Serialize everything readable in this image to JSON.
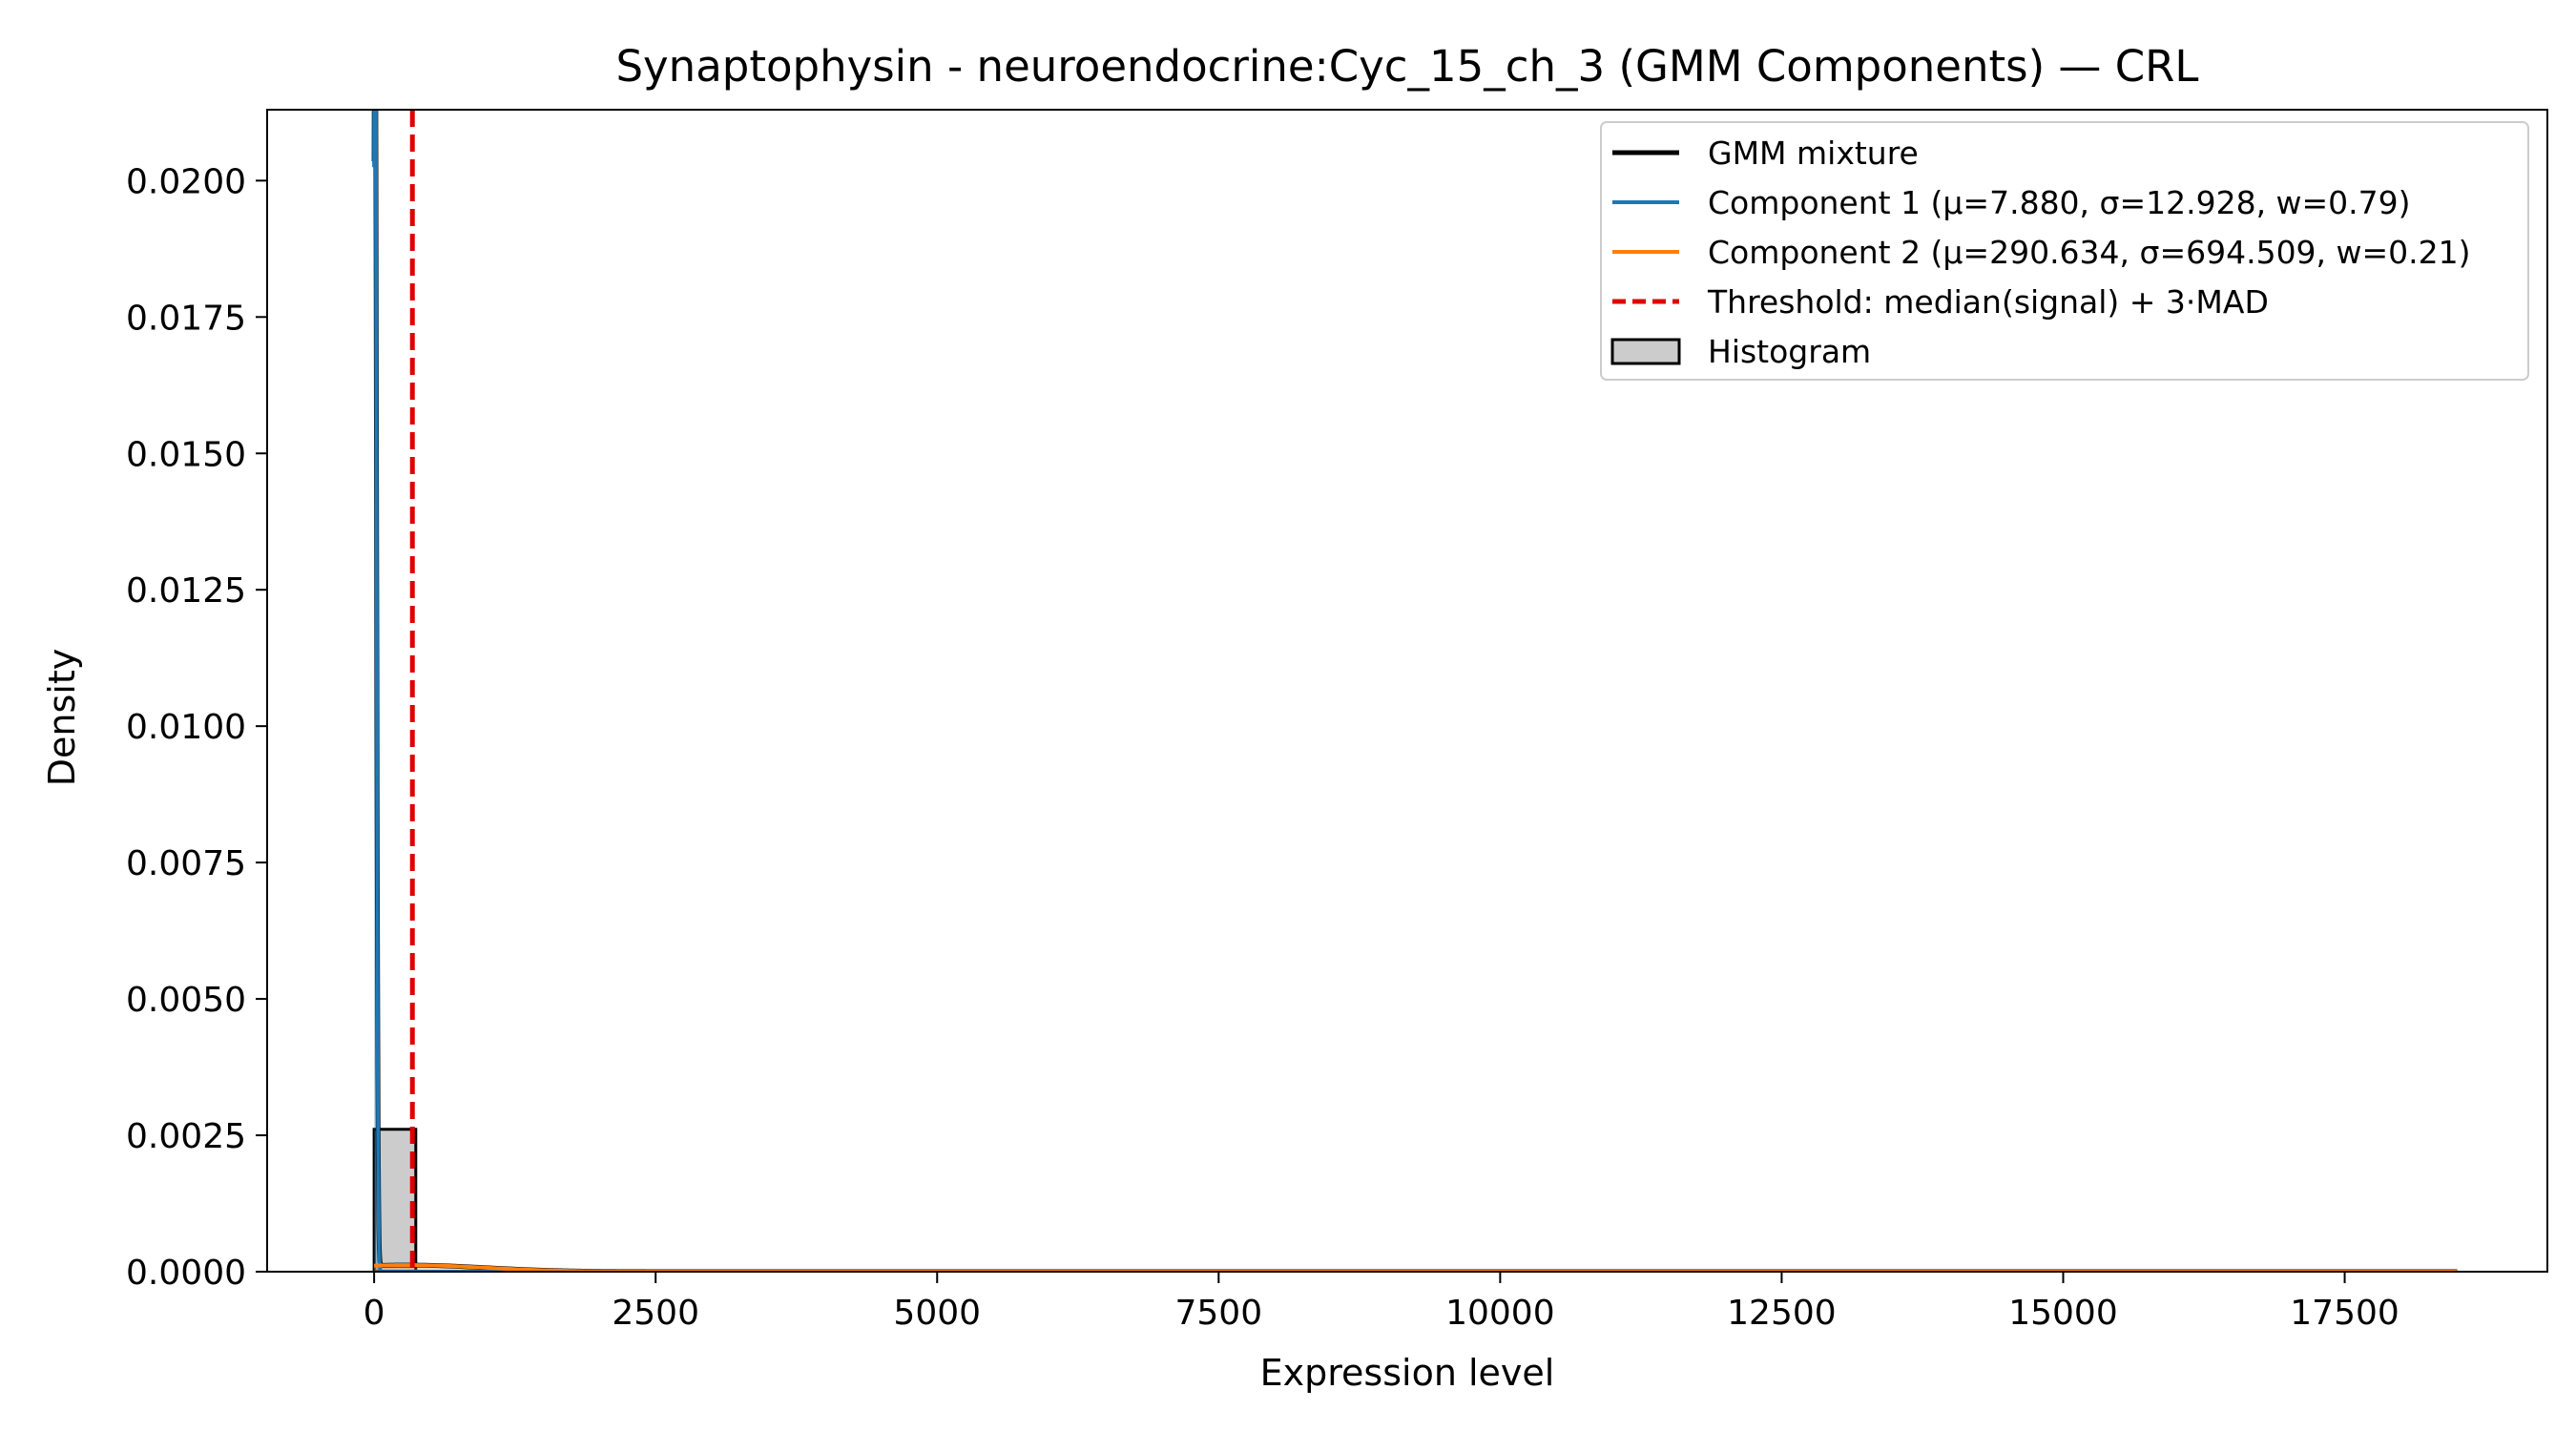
{
  "chart_data": {
    "type": "line",
    "title": "Synaptophysin - neuroendocrine:Cyc_15_ch_3 (GMM Components) — CRL",
    "xlabel": "Expression level",
    "ylabel": "Density",
    "xlim": [
      -950,
      19300
    ],
    "ylim": [
      0,
      0.0213
    ],
    "x_ticks": [
      0,
      2500,
      5000,
      7500,
      10000,
      12500,
      15000,
      17500
    ],
    "x_tick_labels": [
      "0",
      "2500",
      "5000",
      "7500",
      "10000",
      "12500",
      "15000",
      "17500"
    ],
    "y_ticks": [
      0,
      0.0025,
      0.005,
      0.0075,
      0.01,
      0.0125,
      0.015,
      0.0175,
      0.02
    ],
    "y_tick_labels": [
      "0.0000",
      "0.0025",
      "0.0050",
      "0.0075",
      "0.0100",
      "0.0125",
      "0.0150",
      "0.0175",
      "0.0200"
    ],
    "grid": false,
    "legend_position": "top-right",
    "series": [
      {
        "name": "GMM mixture",
        "kind": "gmm-mixture",
        "color": "#000000",
        "components": [
          {
            "mu": 7.88,
            "sigma": 12.928,
            "w": 0.79
          },
          {
            "mu": 290.634,
            "sigma": 694.509,
            "w": 0.21
          }
        ],
        "x_range": [
          0,
          18500
        ]
      },
      {
        "name": "Component 1 (μ=7.880, σ=12.928, w=0.79)",
        "kind": "gmm-component",
        "color": "#1f77b4",
        "mu": 7.88,
        "sigma": 12.928,
        "w": 0.79,
        "x_range": [
          0,
          18500
        ]
      },
      {
        "name": "Component 2 (μ=290.634, σ=694.509, w=0.21)",
        "kind": "gmm-component",
        "color": "#ff7f0e",
        "mu": 290.634,
        "sigma": 694.509,
        "w": 0.21,
        "x_range": [
          0,
          18500
        ]
      },
      {
        "name": "Threshold: median(signal) + 3·MAD",
        "kind": "vline",
        "color": "#e00000",
        "x": 340
      },
      {
        "name": "Histogram",
        "kind": "histogram",
        "color": "#cccccc",
        "edge_color": "#000000",
        "bins": [
          {
            "x0": 0,
            "x1": 370,
            "density": 0.00261
          }
        ]
      }
    ]
  }
}
